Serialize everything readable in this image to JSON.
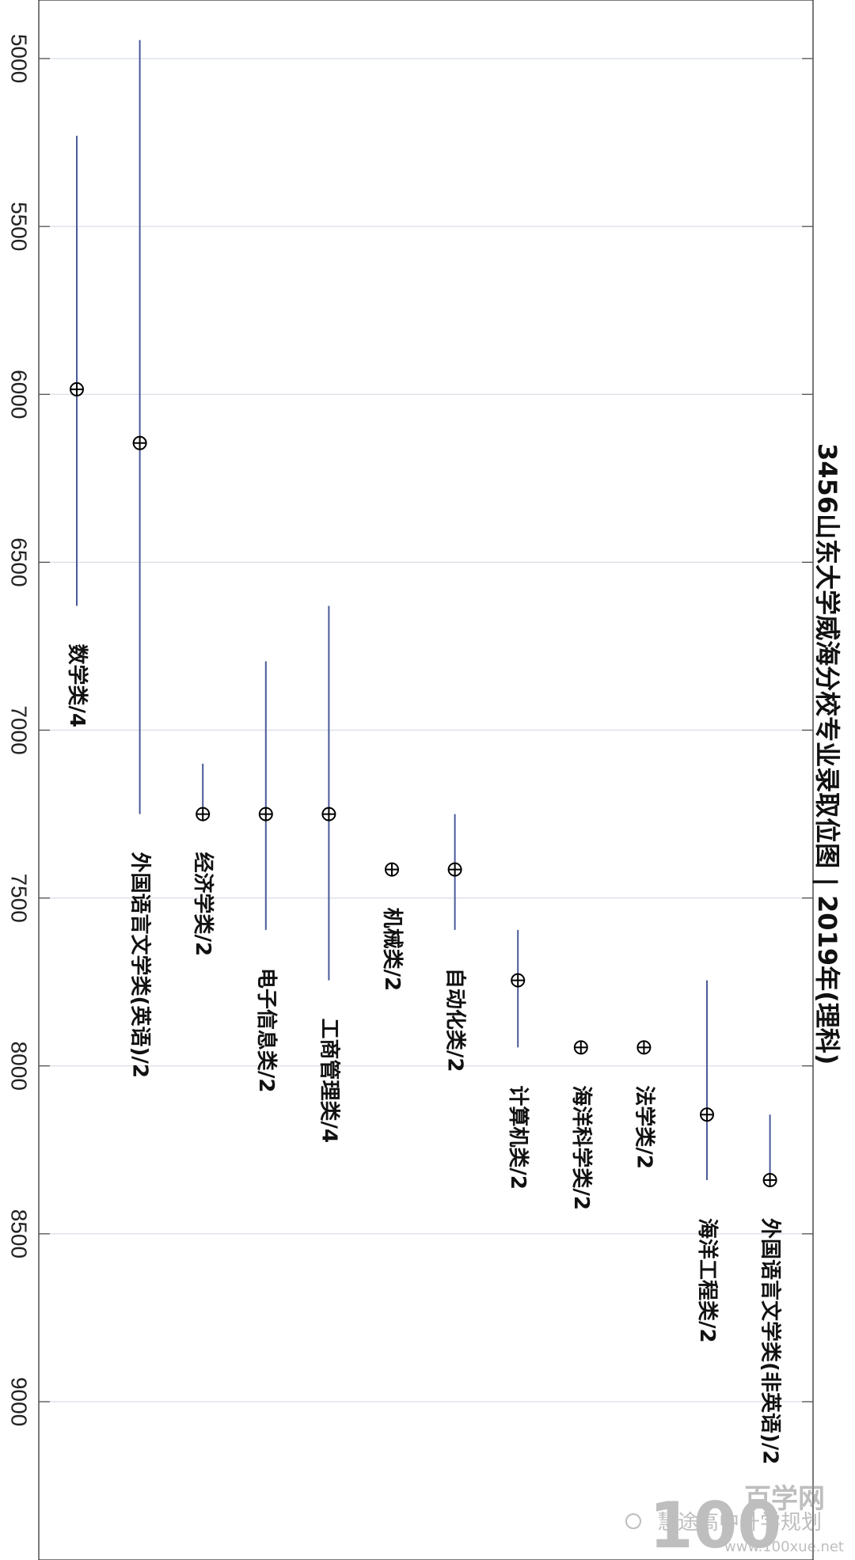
{
  "chart_data": {
    "type": "range-dot",
    "title": "3456山东大学威海分校专业录取位图 | 2019年(理科)",
    "ylim": [
      4830,
      9470
    ],
    "yticks": [
      5000,
      5500,
      6000,
      6500,
      7000,
      7500,
      8000,
      8500,
      9000
    ],
    "grid": true,
    "line_color": "#4a5a9a",
    "marker_color": "#000000",
    "categories": [
      "数学类/4",
      "外国语言文学类(英语)/2",
      "经济学类/2",
      "电子信息类/2",
      "工商管理类/4",
      "机械类/2",
      "自动化类/2",
      "计算机类/2",
      "海洋科学类/2",
      "法学类/2",
      "海洋工程类/2",
      "外国语言文学类(非英语)/2"
    ],
    "series": [
      {
        "category": "数学类/4",
        "low": 5230,
        "mid": 5985,
        "high": 6630
      },
      {
        "category": "外国语言文学类(英语)/2",
        "low": 4945,
        "mid": 6145,
        "high": 7250
      },
      {
        "category": "经济学类/2",
        "low": 7100,
        "mid": 7250,
        "high": 7250
      },
      {
        "category": "电子信息类/2",
        "low": 6795,
        "mid": 7250,
        "high": 7595
      },
      {
        "category": "工商管理类/4",
        "low": 6630,
        "mid": 7250,
        "high": 7745
      },
      {
        "category": "机械类/2",
        "low": 7415,
        "mid": 7415,
        "high": 7415
      },
      {
        "category": "自动化类/2",
        "low": 7250,
        "mid": 7415,
        "high": 7595
      },
      {
        "category": "计算机类/2",
        "low": 7595,
        "mid": 7745,
        "high": 7945
      },
      {
        "category": "海洋科学类/2",
        "low": 7945,
        "mid": 7945,
        "high": 7945
      },
      {
        "category": "法学类/2",
        "low": 7945,
        "mid": 7945,
        "high": 7945
      },
      {
        "category": "海洋工程类/2",
        "low": 7745,
        "mid": 8145,
        "high": 8340
      },
      {
        "category": "外国语言文学类(非英语)/2",
        "low": 8145,
        "mid": 8340,
        "high": 8340
      }
    ]
  },
  "watermark": {
    "logo_text": "100",
    "site_name": "百学网",
    "wechat_name": "慧途高中升学规划",
    "url": "www.100xue.net"
  }
}
